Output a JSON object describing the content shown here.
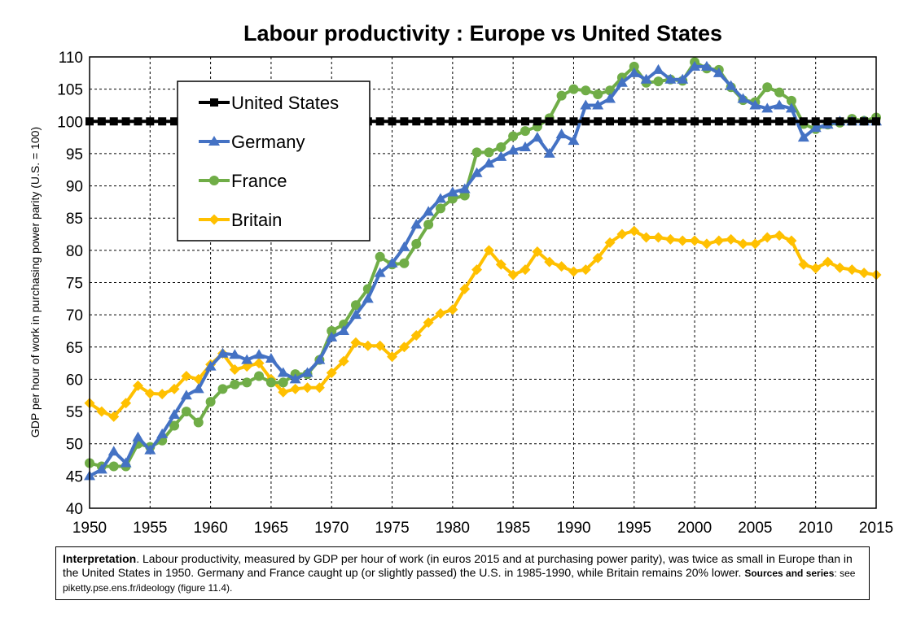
{
  "chart_data": {
    "type": "line",
    "title": "Labour productivity : Europe vs United States",
    "xlabel": "",
    "ylabel": "GDP per hour of work in purchasing power parity (U.S. = 100)",
    "xlim": [
      1950,
      2015
    ],
    "ylim": [
      40,
      110
    ],
    "x_ticks": [
      1950,
      1955,
      1960,
      1965,
      1970,
      1975,
      1980,
      1985,
      1990,
      1995,
      2000,
      2005,
      2010,
      2015
    ],
    "y_ticks": [
      40,
      45,
      50,
      55,
      60,
      65,
      70,
      75,
      80,
      85,
      90,
      95,
      100,
      105,
      110
    ],
    "grid": true,
    "legend_position": "top-left",
    "x": [
      1950,
      1951,
      1952,
      1953,
      1954,
      1955,
      1956,
      1957,
      1958,
      1959,
      1960,
      1961,
      1962,
      1963,
      1964,
      1965,
      1966,
      1967,
      1968,
      1969,
      1970,
      1971,
      1972,
      1973,
      1974,
      1975,
      1976,
      1977,
      1978,
      1979,
      1980,
      1981,
      1982,
      1983,
      1984,
      1985,
      1986,
      1987,
      1988,
      1989,
      1990,
      1991,
      1992,
      1993,
      1994,
      1995,
      1996,
      1997,
      1998,
      1999,
      2000,
      2001,
      2002,
      2003,
      2004,
      2005,
      2006,
      2007,
      2008,
      2009,
      2010,
      2011,
      2012,
      2013,
      2014,
      2015
    ],
    "series": [
      {
        "name": "United States",
        "color": "#000000",
        "marker": "square",
        "values": [
          100,
          100,
          100,
          100,
          100,
          100,
          100,
          100,
          100,
          100,
          100,
          100,
          100,
          100,
          100,
          100,
          100,
          100,
          100,
          100,
          100,
          100,
          100,
          100,
          100,
          100,
          100,
          100,
          100,
          100,
          100,
          100,
          100,
          100,
          100,
          100,
          100,
          100,
          100,
          100,
          100,
          100,
          100,
          100,
          100,
          100,
          100,
          100,
          100,
          100,
          100,
          100,
          100,
          100,
          100,
          100,
          100,
          100,
          100,
          100,
          100,
          100,
          100,
          100,
          100,
          100
        ]
      },
      {
        "name": "Germany",
        "color": "#4472C4",
        "marker": "triangle",
        "values": [
          45,
          46,
          48.8,
          47,
          51,
          49,
          51.5,
          54.5,
          57.5,
          58.5,
          62,
          64,
          63.8,
          63,
          63.8,
          63.2,
          61,
          60,
          61,
          63,
          66.5,
          67.5,
          70,
          72.5,
          76.5,
          78,
          80.5,
          84,
          86,
          88,
          89,
          89.5,
          92,
          93.5,
          94.5,
          95.5,
          96,
          97.5,
          95,
          98,
          97,
          102.5,
          102.5,
          103.5,
          106,
          107.5,
          106.5,
          108,
          106.5,
          106.5,
          108.5,
          108.5,
          107.5,
          105.5,
          103.5,
          102.5,
          102,
          102.5,
          102,
          97.5,
          99,
          99.5,
          100,
          100,
          100,
          100
        ]
      },
      {
        "name": "France",
        "color": "#70AD47",
        "marker": "circle",
        "values": [
          47,
          46.5,
          46.5,
          46.5,
          50,
          49.5,
          50.5,
          52.8,
          55,
          53.3,
          56.5,
          58.5,
          59.2,
          59.5,
          60.5,
          59.5,
          59.5,
          60.8,
          60.8,
          63,
          67.5,
          68.5,
          71.5,
          74,
          79,
          77.8,
          78,
          81,
          84,
          86.5,
          88,
          88.5,
          95.2,
          95.2,
          96,
          97.7,
          98.5,
          99.2,
          100.5,
          104,
          105,
          104.8,
          104.2,
          104.8,
          106.8,
          108.5,
          106,
          106.2,
          106.5,
          106.3,
          109.2,
          108.2,
          108,
          105.3,
          103.3,
          103,
          105.3,
          104.5,
          103.2,
          99.6,
          98.8,
          99.5,
          99.8,
          100.4,
          100.1,
          100.6
        ]
      },
      {
        "name": "Britain",
        "color": "#FFC000",
        "marker": "diamond",
        "values": [
          56.3,
          55,
          54.2,
          56.3,
          59,
          57.8,
          57.7,
          58.5,
          60.5,
          60,
          62.3,
          64,
          61.5,
          62,
          62.5,
          60,
          58,
          58.5,
          58.7,
          58.7,
          61,
          62.8,
          65.7,
          65.2,
          65.2,
          63.5,
          65,
          66.8,
          68.8,
          70.2,
          70.8,
          74,
          77,
          80,
          77.8,
          76.2,
          77,
          79.8,
          78.2,
          77.5,
          76.7,
          77,
          78.8,
          81.2,
          82.5,
          83,
          82,
          82,
          81.7,
          81.5,
          81.5,
          81,
          81.5,
          81.7,
          81,
          81,
          82,
          82.3,
          81.5,
          77.8,
          77.2,
          78.2,
          77.3,
          77,
          76.5,
          76.2
        ]
      }
    ]
  },
  "note": {
    "interp_label": "Interpretation",
    "interp_text": ". Labour productivity, measured by GDP per hour of work (in euros 2015 and at purchasing power parity), was twice as small in Europe than in the United States in 1950. Germany and France caught up (or slightly passed) the U.S. in 1985-1990, while Britain remains 20% lower.",
    "sources_label": "Sources and series",
    "sources_text": ": see piketty.pse.ens.fr/ideology (figure 11.4)."
  }
}
